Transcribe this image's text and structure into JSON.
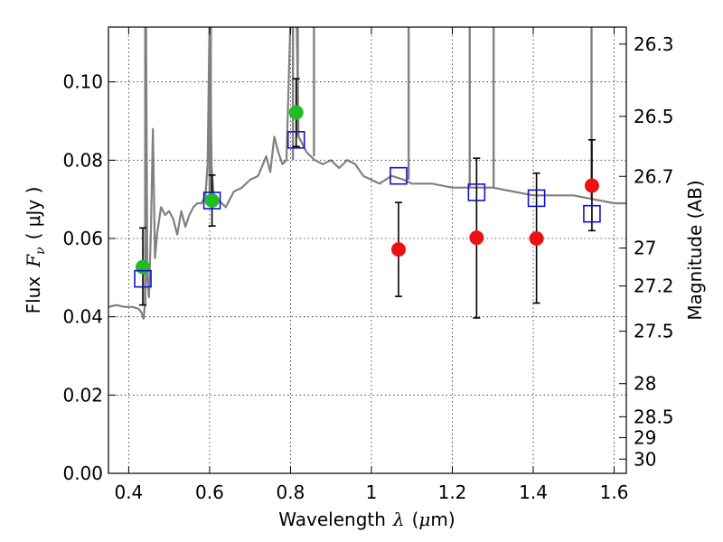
{
  "chart_data": {
    "type": "scatter",
    "xlabel_text": "Wavelength",
    "xlabel_symbol": "λ",
    "xlabel_unit_open": "(",
    "xlabel_unit_mu": "μ",
    "xlabel_unit_rest": "m)",
    "ylabel_text": "Flux",
    "ylabel_symbol": "F",
    "ylabel_sub": "ν",
    "ylabel_unit": "( μJy )",
    "y2label": "Magnitude (AB)",
    "xlim": [
      0.35,
      1.63
    ],
    "ylim": [
      0.0,
      0.114
    ],
    "grid": true,
    "xticks": [
      {
        "v": 0.4,
        "label": "0.4"
      },
      {
        "v": 0.6,
        "label": "0.6"
      },
      {
        "v": 0.8,
        "label": "0.8"
      },
      {
        "v": 1.0,
        "label": "1"
      },
      {
        "v": 1.2,
        "label": "1.2"
      },
      {
        "v": 1.4,
        "label": "1.4"
      },
      {
        "v": 1.6,
        "label": "1.6"
      }
    ],
    "yticks": [
      {
        "v": 0.0,
        "label": "0.00"
      },
      {
        "v": 0.02,
        "label": "0.02"
      },
      {
        "v": 0.04,
        "label": "0.04"
      },
      {
        "v": 0.06,
        "label": "0.06"
      },
      {
        "v": 0.08,
        "label": "0.08"
      },
      {
        "v": 0.1,
        "label": "0.10"
      }
    ],
    "y2ticks": [
      {
        "mag": 26.3,
        "label": "26.3"
      },
      {
        "mag": 26.5,
        "label": "26.5"
      },
      {
        "mag": 26.7,
        "label": "26.7"
      },
      {
        "mag": 27.0,
        "label": "27"
      },
      {
        "mag": 27.2,
        "label": "27.2"
      },
      {
        "mag": 27.5,
        "label": "27.5"
      },
      {
        "mag": 28.0,
        "label": "28"
      },
      {
        "mag": 28.5,
        "label": "28.5"
      },
      {
        "mag": 29.0,
        "label": "29"
      },
      {
        "mag": 30.0,
        "label": "30"
      }
    ],
    "colors": {
      "spectrum": "#808080",
      "green": "#22bb22",
      "red": "#ee1111",
      "model": "#1111cc",
      "errorbar": "#000000"
    },
    "series": [
      {
        "name": "model_spectrum",
        "kind": "line",
        "x": [
          0.35,
          0.37,
          0.39,
          0.41,
          0.425,
          0.432,
          0.437,
          0.44,
          0.443,
          0.446,
          0.45,
          0.455,
          0.46,
          0.465,
          0.47,
          0.48,
          0.49,
          0.5,
          0.51,
          0.52,
          0.53,
          0.54,
          0.55,
          0.56,
          0.57,
          0.58,
          0.59,
          0.595,
          0.6,
          0.605,
          0.61,
          0.62,
          0.64,
          0.66,
          0.68,
          0.7,
          0.72,
          0.74,
          0.75,
          0.76,
          0.77,
          0.78,
          0.79,
          0.8,
          0.805,
          0.81,
          0.815,
          0.82,
          0.84,
          0.86,
          0.88,
          0.9,
          0.92,
          0.94,
          0.96,
          0.98,
          1.0,
          1.02,
          1.05,
          1.08,
          1.1,
          1.15,
          1.2,
          1.25,
          1.3,
          1.35,
          1.4,
          1.45,
          1.5,
          1.55,
          1.6,
          1.63
        ],
        "y": [
          0.0425,
          0.043,
          0.0425,
          0.0425,
          0.042,
          0.041,
          0.0395,
          0.043,
          0.116,
          0.05,
          0.045,
          0.062,
          0.088,
          0.055,
          0.061,
          0.068,
          0.066,
          0.067,
          0.065,
          0.061,
          0.067,
          0.063,
          0.066,
          0.068,
          0.069,
          0.069,
          0.071,
          0.079,
          0.116,
          0.078,
          0.071,
          0.07,
          0.068,
          0.072,
          0.073,
          0.075,
          0.076,
          0.081,
          0.077,
          0.086,
          0.082,
          0.079,
          0.08,
          0.116,
          0.116,
          0.116,
          0.116,
          0.086,
          0.082,
          0.08,
          0.079,
          0.08,
          0.078,
          0.08,
          0.079,
          0.076,
          0.075,
          0.074,
          0.076,
          0.075,
          0.074,
          0.074,
          0.073,
          0.073,
          0.073,
          0.072,
          0.071,
          0.071,
          0.071,
          0.07,
          0.069,
          0.069
        ]
      },
      {
        "name": "emission_spikes",
        "kind": "spikes",
        "points": [
          {
            "x": 0.441,
            "base": 0.043,
            "top": 0.116
          },
          {
            "x": 0.6,
            "base": 0.07,
            "top": 0.116
          },
          {
            "x": 0.603,
            "base": 0.07,
            "top": 0.116
          },
          {
            "x": 0.806,
            "base": 0.08,
            "top": 0.116
          },
          {
            "x": 0.818,
            "base": 0.086,
            "top": 0.116
          },
          {
            "x": 0.858,
            "base": 0.081,
            "top": 0.116
          },
          {
            "x": 1.092,
            "base": 0.075,
            "top": 0.116
          },
          {
            "x": 1.243,
            "base": 0.073,
            "top": 0.116
          },
          {
            "x": 1.302,
            "base": 0.073,
            "top": 0.116
          },
          {
            "x": 1.544,
            "base": 0.07,
            "top": 0.116
          }
        ]
      },
      {
        "name": "observed_optical",
        "kind": "circles",
        "color": "green",
        "points": [
          {
            "x": 0.435,
            "y": 0.0527,
            "ylo": 0.043,
            "yhi": 0.0627
          },
          {
            "x": 0.606,
            "y": 0.0697,
            "ylo": 0.0632,
            "yhi": 0.0762
          },
          {
            "x": 0.814,
            "y": 0.0922,
            "ylo": 0.0835,
            "yhi": 0.1008
          }
        ]
      },
      {
        "name": "observed_nir",
        "kind": "circles",
        "color": "red",
        "points": [
          {
            "x": 1.067,
            "y": 0.0572,
            "ylo": 0.0452,
            "yhi": 0.0692
          },
          {
            "x": 1.26,
            "y": 0.0602,
            "ylo": 0.0397,
            "yhi": 0.0805
          },
          {
            "x": 1.408,
            "y": 0.06,
            "ylo": 0.0435,
            "yhi": 0.0767
          },
          {
            "x": 1.545,
            "y": 0.0735,
            "ylo": 0.062,
            "yhi": 0.0852
          }
        ]
      },
      {
        "name": "model_photometry",
        "kind": "squares",
        "color": "model",
        "points": [
          {
            "x": 0.435,
            "y": 0.0497
          },
          {
            "x": 0.606,
            "y": 0.0697
          },
          {
            "x": 0.814,
            "y": 0.0852
          },
          {
            "x": 1.067,
            "y": 0.076
          },
          {
            "x": 1.26,
            "y": 0.0718
          },
          {
            "x": 1.408,
            "y": 0.0703
          },
          {
            "x": 1.545,
            "y": 0.0663
          }
        ]
      }
    ]
  }
}
